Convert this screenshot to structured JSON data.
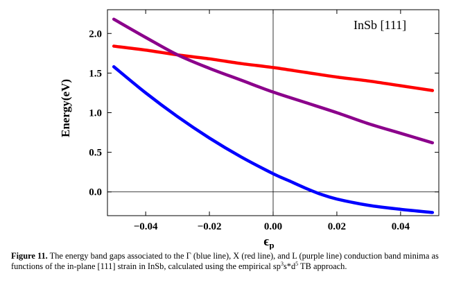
{
  "chart_data": {
    "type": "line",
    "title": "",
    "annotation": "InSb [111]",
    "xlabel": "ϵp",
    "xlabel_main": "ϵ",
    "xlabel_sub": "p",
    "ylabel": "Energy(eV)",
    "xlim": [
      -0.052,
      0.052
    ],
    "ylim": [
      -0.3,
      2.3
    ],
    "xticks": [
      -0.04,
      -0.02,
      0.0,
      0.02,
      0.04
    ],
    "xtick_labels": [
      "−0.04",
      "−0.02",
      "0.00",
      "0.02",
      "0.04"
    ],
    "yticks": [
      0.0,
      0.5,
      1.0,
      1.5,
      2.0
    ],
    "ytick_labels": [
      "0.0",
      "0.5",
      "1.0",
      "1.5",
      "2.0"
    ],
    "reference_lines": {
      "x": 0.0,
      "y": 0.0
    },
    "series": [
      {
        "name": "Γ (blue line)",
        "color": "#0000ff",
        "x": [
          -0.05,
          -0.04,
          -0.03,
          -0.02,
          -0.01,
          0.0,
          0.005,
          0.01,
          0.015,
          0.02,
          0.03,
          0.04,
          0.05
        ],
        "y": [
          1.58,
          1.25,
          0.95,
          0.68,
          0.44,
          0.23,
          0.14,
          0.05,
          -0.03,
          -0.09,
          -0.17,
          -0.22,
          -0.26
        ]
      },
      {
        "name": "X (red line)",
        "color": "#ff0000",
        "x": [
          -0.05,
          -0.04,
          -0.03,
          -0.02,
          -0.01,
          0.0,
          0.01,
          0.02,
          0.03,
          0.04,
          0.05
        ],
        "y": [
          1.84,
          1.79,
          1.73,
          1.68,
          1.62,
          1.57,
          1.51,
          1.45,
          1.4,
          1.34,
          1.28
        ]
      },
      {
        "name": "L (purple line)",
        "color": "#8b008b",
        "x": [
          -0.05,
          -0.04,
          -0.03,
          -0.02,
          -0.01,
          0.0,
          0.01,
          0.02,
          0.03,
          0.04,
          0.05
        ],
        "y": [
          2.18,
          1.95,
          1.73,
          1.56,
          1.41,
          1.26,
          1.13,
          1.0,
          0.86,
          0.74,
          0.62
        ]
      }
    ]
  },
  "caption": {
    "label": "Figure 11.",
    "text_part1": "  The energy band gaps associated to the Γ (blue line), X (red line), and L (purple line) conduction band minima as functions of the in-plane [111] strain in InSb, calculated using the empirical sp",
    "sup1": "3",
    "text_part2": "s*d",
    "sup2": "5",
    "text_part3": " TB approach."
  }
}
